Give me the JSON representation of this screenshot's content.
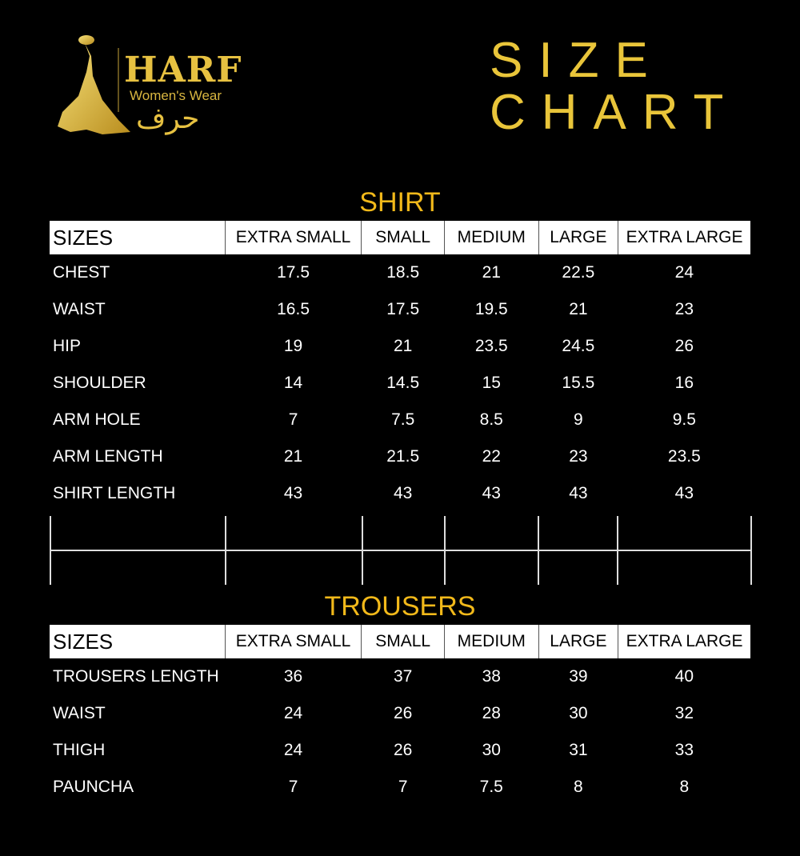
{
  "logo": {
    "brand": "HARF",
    "tagline": "Women's Wear",
    "arabic": "حرف"
  },
  "title": {
    "line1": "SIZE",
    "line2": "CHART"
  },
  "colors": {
    "gold": "#e9c53a",
    "section_title": "#f2b91a",
    "background": "#000000"
  },
  "shirt": {
    "title": "SHIRT",
    "headers": [
      "SIZES",
      "EXTRA SMALL",
      "SMALL",
      "MEDIUM",
      "LARGE",
      "EXTRA LARGE"
    ],
    "rows": [
      [
        "CHEST",
        "17.5",
        "18.5",
        "21",
        "22.5",
        "24"
      ],
      [
        "WAIST",
        "16.5",
        "17.5",
        "19.5",
        "21",
        "23"
      ],
      [
        "HIP",
        "19",
        "21",
        "23.5",
        "24.5",
        "26"
      ],
      [
        "SHOULDER",
        "14",
        "14.5",
        "15",
        "15.5",
        "16"
      ],
      [
        "ARM HOLE",
        "7",
        "7.5",
        "8.5",
        "9",
        "9.5"
      ],
      [
        "ARM LENGTH",
        "21",
        "21.5",
        "22",
        "23",
        "23.5"
      ],
      [
        "SHIRT LENGTH",
        "43",
        "43",
        "43",
        "43",
        "43"
      ]
    ]
  },
  "trousers": {
    "title": "TROUSERS",
    "headers": [
      "SIZES",
      "EXTRA SMALL",
      "SMALL",
      "MEDIUM",
      "LARGE",
      "EXTRA LARGE"
    ],
    "rows": [
      [
        "TROUSERS LENGTH",
        "36",
        "37",
        "38",
        "39",
        "40"
      ],
      [
        "WAIST",
        "24",
        "26",
        "28",
        "30",
        "32"
      ],
      [
        "THIGH",
        "24",
        "26",
        "30",
        "31",
        "33"
      ],
      [
        "PAUNCHA",
        "7",
        "7",
        "7.5",
        "8",
        "8"
      ]
    ]
  }
}
